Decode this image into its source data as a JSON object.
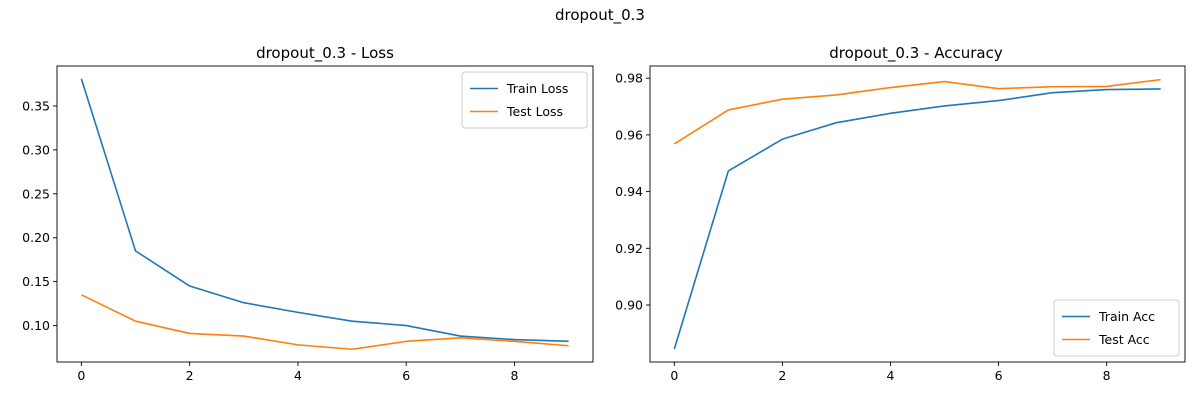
{
  "figure": {
    "title": "dropout_0.3"
  },
  "chart_data": [
    {
      "type": "line",
      "title": "dropout_0.3 - Loss",
      "xlabel": "",
      "ylabel": "",
      "x": [
        0,
        1,
        2,
        3,
        4,
        5,
        6,
        7,
        8,
        9
      ],
      "xlim": [
        -0.45,
        9.45
      ],
      "ylim": [
        0.0585,
        0.3955
      ],
      "xticks": [
        0,
        2,
        4,
        6,
        8
      ],
      "yticks": [
        0.1,
        0.15,
        0.2,
        0.25,
        0.3,
        0.35
      ],
      "ytick_decimals": 2,
      "grid": false,
      "legend_position": "top-right",
      "series": [
        {
          "name": "Train Loss",
          "color": "#1f77b4",
          "values": [
            0.381,
            0.185,
            0.145,
            0.126,
            0.115,
            0.105,
            0.1,
            0.088,
            0.084,
            0.082
          ]
        },
        {
          "name": "Test Loss",
          "color": "#ff7f0e",
          "values": [
            0.135,
            0.105,
            0.091,
            0.088,
            0.078,
            0.073,
            0.082,
            0.086,
            0.082,
            0.077
          ]
        }
      ]
    },
    {
      "type": "line",
      "title": "dropout_0.3 - Accuracy",
      "xlabel": "",
      "ylabel": "",
      "x": [
        0,
        1,
        2,
        3,
        4,
        5,
        6,
        7,
        8,
        9
      ],
      "xlim": [
        -0.45,
        9.45
      ],
      "ylim": [
        0.8799,
        0.9843
      ],
      "xticks": [
        0,
        2,
        4,
        6,
        8
      ],
      "yticks": [
        0.9,
        0.92,
        0.94,
        0.96,
        0.98
      ],
      "ytick_decimals": 2,
      "grid": false,
      "legend_position": "bottom-right",
      "series": [
        {
          "name": "Train Acc",
          "color": "#1f77b4",
          "values": [
            0.8845,
            0.9473,
            0.9585,
            0.9643,
            0.9676,
            0.9702,
            0.9721,
            0.9749,
            0.976,
            0.9762
          ]
        },
        {
          "name": "Test Acc",
          "color": "#ff7f0e",
          "values": [
            0.9568,
            0.9688,
            0.9726,
            0.9741,
            0.9767,
            0.9788,
            0.9763,
            0.977,
            0.9771,
            0.9795
          ]
        }
      ]
    }
  ]
}
